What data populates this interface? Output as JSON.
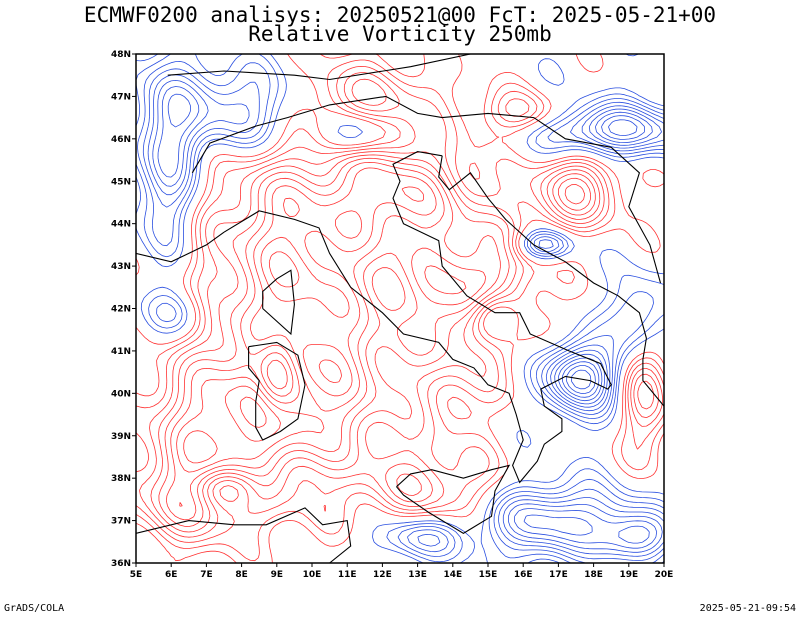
{
  "header": {
    "line1": "ECMWF0200 analisys: 20250521@00 FcT: 2025-05-21+00",
    "line2": "Relative Vorticity 250mb"
  },
  "map": {
    "lon_range": [
      5,
      20
    ],
    "lat_range": [
      36,
      48
    ],
    "lon_ticks": [
      "5E",
      "6E",
      "7E",
      "8E",
      "9E",
      "10E",
      "11E",
      "12E",
      "13E",
      "14E",
      "15E",
      "16E",
      "17E",
      "18E",
      "19E",
      "20E"
    ],
    "lat_ticks": [
      "48N",
      "47N",
      "46N",
      "45N",
      "44N",
      "43N",
      "42N",
      "41N",
      "40N",
      "39N",
      "38N",
      "37N",
      "36N"
    ],
    "colors": {
      "positive_vorticity": "#ff3333",
      "negative_vorticity": "#2a4fe0",
      "coastline": "#000000",
      "grid": "#888888"
    }
  },
  "footer": {
    "left": "GrADS/COLA",
    "right": "2025-05-21-09:54"
  }
}
